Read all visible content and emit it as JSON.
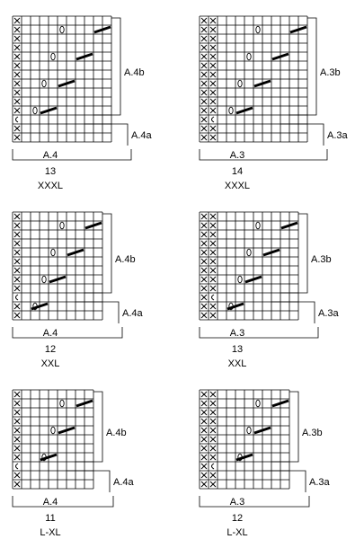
{
  "charts": [
    {
      "id": "A.4",
      "row": 0,
      "col": 0,
      "cols": 11,
      "rows": 14,
      "xcols": 1,
      "ocols": [
        2,
        4,
        6
      ],
      "ccol": 0,
      "diag": [
        3,
        7,
        11
      ],
      "b": "A.4b",
      "a": "A.4a",
      "bottom": "A.4",
      "number": "13",
      "size": "XXXL"
    },
    {
      "id": "A.3",
      "row": 0,
      "col": 1,
      "cols": 12,
      "rows": 14,
      "xcols": 2,
      "ocols": [
        4,
        6
      ],
      "ccol": 1,
      "diag": [
        3,
        7,
        11
      ],
      "b": "A.3b",
      "a": "A.3a",
      "bottom": "A.3",
      "number": "14",
      "size": "XXXL"
    },
    {
      "id": "A.4",
      "row": 1,
      "col": 0,
      "cols": 10,
      "rows": 12,
      "xcols": 1,
      "ocols": [
        2,
        4
      ],
      "ccol": 0,
      "diag": [
        3,
        7,
        11
      ],
      "b": "A.4b",
      "a": "A.4a",
      "bottom": "A.4",
      "number": "12",
      "size": "XXL"
    },
    {
      "id": "A.3",
      "row": 1,
      "col": 1,
      "cols": 11,
      "rows": 12,
      "xcols": 2,
      "ocols": [
        4,
        6
      ],
      "ccol": 1,
      "diag": [
        3,
        7,
        11
      ],
      "b": "A.3b",
      "a": "A.3a",
      "bottom": "A.3",
      "number": "13",
      "size": "XXL"
    },
    {
      "id": "A.4",
      "row": 2,
      "col": 0,
      "cols": 9,
      "rows": 11,
      "xcols": 1,
      "ocols": [
        2,
        4
      ],
      "ccol": 0,
      "diag": [
        3,
        7,
        11
      ],
      "b": "A.4b",
      "a": "A.4a",
      "bottom": "A.4",
      "number": "11",
      "size": "L-XL"
    },
    {
      "id": "A.3",
      "row": 2,
      "col": 1,
      "cols": 10,
      "rows": 11,
      "xcols": 2,
      "ocols": [
        4,
        6
      ],
      "ccol": 1,
      "diag": [
        3,
        7,
        11
      ],
      "b": "A.3b",
      "a": "A.3a",
      "bottom": "A.3",
      "number": "12",
      "size": "L-XL"
    }
  ]
}
